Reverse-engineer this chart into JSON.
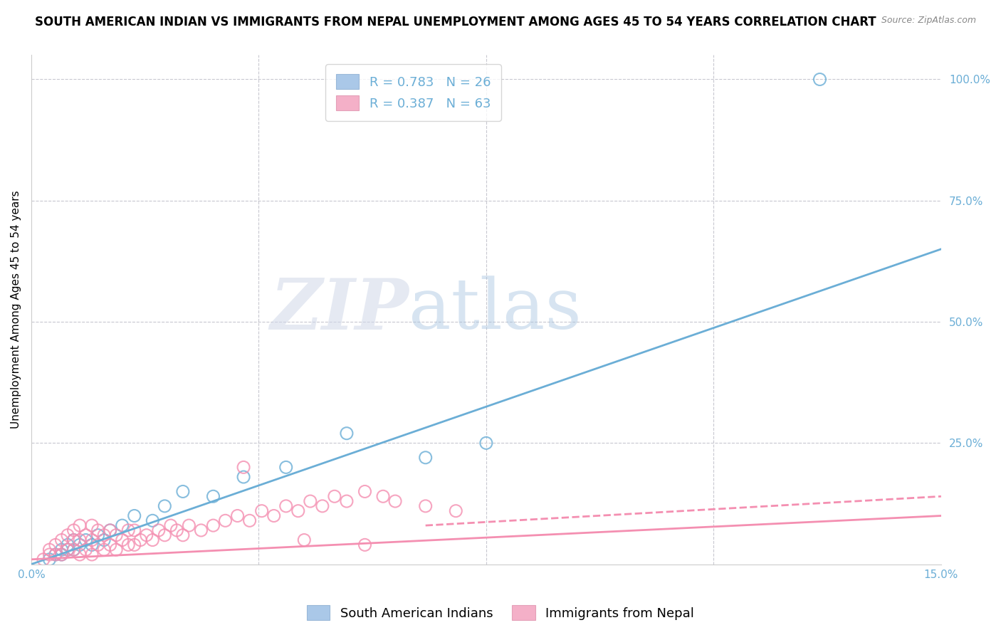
{
  "title": "SOUTH AMERICAN INDIAN VS IMMIGRANTS FROM NEPAL UNEMPLOYMENT AMONG AGES 45 TO 54 YEARS CORRELATION CHART",
  "source": "Source: ZipAtlas.com",
  "ylabel_label": "Unemployment Among Ages 45 to 54 years",
  "right_yticklabels": [
    "",
    "25.0%",
    "50.0%",
    "75.0%",
    "100.0%"
  ],
  "right_ytick_vals": [
    0.0,
    0.25,
    0.5,
    0.75,
    1.0
  ],
  "xmin": 0.0,
  "xmax": 0.15,
  "ymin": 0.0,
  "ymax": 1.05,
  "legend_entries": [
    {
      "label_r": "R = 0.783",
      "label_n": "N = 26",
      "color": "#6baed6"
    },
    {
      "label_r": "R = 0.387",
      "label_n": "N = 63",
      "color": "#f48fb1"
    }
  ],
  "series_blue": {
    "name": "South American Indians",
    "color": "#6baed6",
    "scatter_x": [
      0.003,
      0.004,
      0.005,
      0.005,
      0.006,
      0.006,
      0.007,
      0.007,
      0.008,
      0.009,
      0.01,
      0.011,
      0.012,
      0.013,
      0.015,
      0.017,
      0.02,
      0.022,
      0.025,
      0.03,
      0.035,
      0.042,
      0.052,
      0.065,
      0.075,
      0.13
    ],
    "scatter_y": [
      0.01,
      0.02,
      0.02,
      0.03,
      0.03,
      0.04,
      0.03,
      0.05,
      0.04,
      0.05,
      0.04,
      0.06,
      0.05,
      0.07,
      0.08,
      0.1,
      0.09,
      0.12,
      0.15,
      0.14,
      0.18,
      0.2,
      0.27,
      0.22,
      0.25,
      1.0
    ],
    "line_x": [
      0.0,
      0.15
    ],
    "line_y": [
      0.0,
      0.65
    ]
  },
  "series_pink": {
    "name": "Immigrants from Nepal",
    "color": "#f48fb1",
    "scatter_x": [
      0.002,
      0.003,
      0.003,
      0.004,
      0.004,
      0.005,
      0.005,
      0.006,
      0.006,
      0.007,
      0.007,
      0.007,
      0.008,
      0.008,
      0.008,
      0.009,
      0.009,
      0.01,
      0.01,
      0.01,
      0.011,
      0.011,
      0.012,
      0.012,
      0.013,
      0.013,
      0.014,
      0.014,
      0.015,
      0.016,
      0.016,
      0.017,
      0.017,
      0.018,
      0.019,
      0.02,
      0.021,
      0.022,
      0.023,
      0.024,
      0.025,
      0.026,
      0.028,
      0.03,
      0.032,
      0.034,
      0.036,
      0.038,
      0.04,
      0.042,
      0.044,
      0.046,
      0.048,
      0.05,
      0.052,
      0.055,
      0.058,
      0.06,
      0.065,
      0.07,
      0.035,
      0.045,
      0.055
    ],
    "scatter_y": [
      0.01,
      0.02,
      0.03,
      0.02,
      0.04,
      0.02,
      0.05,
      0.03,
      0.06,
      0.03,
      0.05,
      0.07,
      0.02,
      0.05,
      0.08,
      0.03,
      0.06,
      0.02,
      0.05,
      0.08,
      0.04,
      0.07,
      0.03,
      0.06,
      0.04,
      0.07,
      0.03,
      0.06,
      0.05,
      0.04,
      0.07,
      0.04,
      0.07,
      0.05,
      0.06,
      0.05,
      0.07,
      0.06,
      0.08,
      0.07,
      0.06,
      0.08,
      0.07,
      0.08,
      0.09,
      0.1,
      0.09,
      0.11,
      0.1,
      0.12,
      0.11,
      0.13,
      0.12,
      0.14,
      0.13,
      0.15,
      0.14,
      0.13,
      0.12,
      0.11,
      0.2,
      0.05,
      0.04
    ],
    "line_x": [
      0.0,
      0.15
    ],
    "line_y": [
      0.01,
      0.1
    ],
    "dash_line_x": [
      0.065,
      0.15
    ],
    "dash_line_y": [
      0.08,
      0.14
    ]
  },
  "watermark_zip": "ZIP",
  "watermark_atlas": "atlas",
  "background_color": "#ffffff",
  "grid_color": "#c8c8d0",
  "title_fontsize": 12,
  "axis_label_fontsize": 11,
  "tick_fontsize": 11,
  "legend_fontsize": 13
}
